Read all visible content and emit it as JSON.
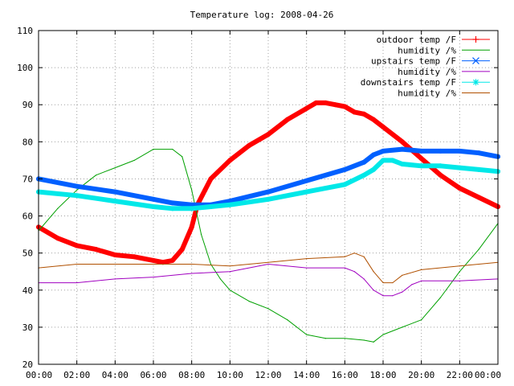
{
  "chart_data": {
    "type": "line",
    "title": "Temperature log: 2008-04-26",
    "xlabel": "",
    "ylabel": "",
    "ylim": [
      20,
      110
    ],
    "yticks": [
      "20",
      "30",
      "40",
      "50",
      "60",
      "70",
      "80",
      "90",
      "100",
      "110"
    ],
    "xticks": [
      "00:00",
      "02:00",
      "04:00",
      "06:00",
      "08:00",
      "10:00",
      "12:00",
      "14:00",
      "16:00",
      "18:00",
      "20:00",
      "22:00",
      "00:00"
    ],
    "grid": true,
    "legend_position": "top-right",
    "series": [
      {
        "name": "outdoor temp /F",
        "color": "#ff0000",
        "marker": "plus",
        "thick": true,
        "x": [
          0,
          1,
          2,
          3,
          4,
          5,
          6,
          6.5,
          7,
          7.5,
          8,
          8.3,
          8.7,
          9,
          10,
          11,
          12,
          13,
          14,
          14.5,
          15,
          15.5,
          16,
          16.5,
          17,
          17.5,
          18,
          19,
          20,
          21,
          22,
          23,
          24
        ],
        "values": [
          57,
          54,
          52,
          51,
          49.5,
          49,
          48,
          47.5,
          48,
          51,
          57,
          63,
          67,
          70,
          75,
          79,
          82,
          86,
          89,
          90.5,
          90.5,
          90,
          89.5,
          88,
          87.5,
          86,
          84,
          80,
          75.5,
          71,
          67.5,
          65,
          62.5
        ]
      },
      {
        "name": "humidity /%",
        "color": "#00a000",
        "marker": "none",
        "thick": false,
        "x": [
          0,
          1,
          2,
          3,
          4,
          5,
          6,
          7,
          7.5,
          8,
          8.5,
          9,
          9.5,
          10,
          11,
          12,
          13,
          14,
          15,
          16,
          17,
          17.5,
          18,
          19,
          20,
          21,
          22,
          23,
          24
        ],
        "values": [
          56,
          62,
          67,
          71,
          73,
          75,
          78,
          78,
          76,
          67,
          55,
          47,
          43,
          40,
          37,
          35,
          32,
          28,
          27,
          27,
          26.5,
          26,
          28,
          30,
          32,
          38,
          45,
          51,
          58
        ]
      },
      {
        "name": "upstairs temp /F",
        "color": "#0060ff",
        "marker": "cross",
        "thick": true,
        "x": [
          0,
          2,
          4,
          6,
          7,
          8,
          9,
          10,
          12,
          14,
          16,
          17,
          17.5,
          18,
          19,
          20,
          21,
          22,
          23,
          24
        ],
        "values": [
          70,
          68,
          66.5,
          64.5,
          63.5,
          63,
          63,
          64,
          66.5,
          69.5,
          72.5,
          74.5,
          76.5,
          77.5,
          78,
          77.5,
          77.5,
          77.5,
          77,
          76
        ]
      },
      {
        "name": "humidity /%",
        "color": "#a000c0",
        "marker": "none",
        "thick": false,
        "x": [
          0,
          2,
          4,
          6,
          8,
          10,
          12,
          14,
          16,
          16.5,
          17,
          17.5,
          18,
          18.5,
          19,
          19.5,
          20,
          22,
          24
        ],
        "values": [
          42,
          42,
          43,
          43.5,
          44.5,
          45,
          47,
          46,
          46,
          45,
          43,
          40,
          38.5,
          38.5,
          39.5,
          41.5,
          42.5,
          42.5,
          43
        ]
      },
      {
        "name": "downstairs temp /F",
        "color": "#00e8e8",
        "marker": "star",
        "thick": true,
        "x": [
          0,
          2,
          4,
          6,
          7,
          8,
          9,
          10,
          12,
          14,
          16,
          17,
          17.5,
          18,
          18.5,
          19,
          20,
          21,
          22,
          23,
          24
        ],
        "values": [
          66.5,
          65.5,
          64,
          62.5,
          62,
          62,
          62.5,
          63,
          64.5,
          66.5,
          68.5,
          71,
          72.5,
          75,
          75,
          74,
          73.5,
          73.5,
          73,
          72.5,
          72
        ]
      },
      {
        "name": "humidity /%",
        "color": "#b05000",
        "marker": "none",
        "thick": false,
        "x": [
          0,
          2,
          4,
          6,
          8,
          10,
          12,
          14,
          16,
          16.5,
          17,
          17.5,
          18,
          18.5,
          19,
          20,
          22,
          24
        ],
        "values": [
          46,
          47,
          47,
          47,
          47,
          46.5,
          47.5,
          48.5,
          49,
          50,
          49,
          45,
          42,
          42,
          44,
          45.5,
          46.5,
          47.5
        ]
      }
    ]
  }
}
